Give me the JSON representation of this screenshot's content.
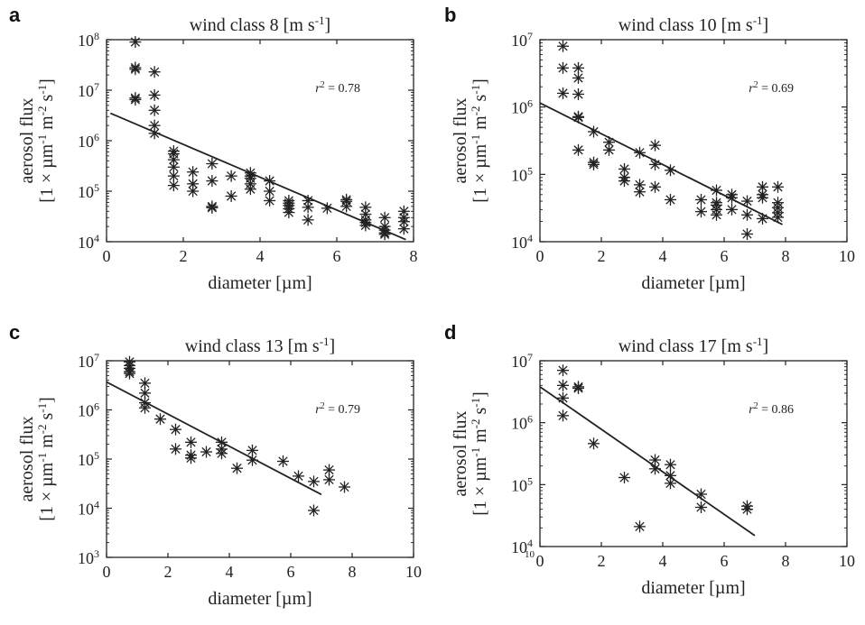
{
  "figure": {
    "colors": {
      "ink": "#222222"
    }
  },
  "chart_data": [
    {
      "type": "scatter",
      "panel": "a",
      "title": "wind class 8 [m s",
      "title_sup": "-1",
      "title_end": "]",
      "xlabel": "diameter [µm]",
      "ylabel_line1": "aerosol flux",
      "ylabel_line2_a": "[1 × µm",
      "ylabel_line2_b": " m",
      "ylabel_line2_c": " s",
      "ylabel_line2_d": "]",
      "ylabel_sup1": "-1",
      "ylabel_sup2": "-2",
      "ylabel_sup3": "-1",
      "r2_label": "r",
      "r2_value": " = 0.78",
      "xlim": [
        0,
        8
      ],
      "xticks": [
        "0",
        "2",
        "4",
        "6",
        "8"
      ],
      "y_scale": "log",
      "ylim_exp": [
        4,
        8
      ],
      "yticks_exp": [
        "4",
        "5",
        "6",
        "7",
        "8"
      ],
      "ytick_base": "10",
      "fit_line": [
        [
          0.1,
          3500000
        ],
        [
          7.8,
          11000
        ]
      ],
      "points": [
        [
          0.75,
          90000000
        ],
        [
          0.75,
          28000000
        ],
        [
          0.75,
          26000000
        ],
        [
          0.75,
          7000000
        ],
        [
          0.75,
          6500000
        ],
        [
          1.25,
          23000000
        ],
        [
          1.25,
          8000000
        ],
        [
          1.25,
          4000000
        ],
        [
          1.25,
          2000000
        ],
        [
          1.25,
          1400000
        ],
        [
          1.75,
          620000
        ],
        [
          1.75,
          550000
        ],
        [
          1.75,
          420000
        ],
        [
          1.75,
          300000
        ],
        [
          1.75,
          200000
        ],
        [
          1.75,
          130000
        ],
        [
          2.25,
          240000
        ],
        [
          2.25,
          140000
        ],
        [
          2.25,
          100000
        ],
        [
          2.75,
          350000
        ],
        [
          2.75,
          160000
        ],
        [
          2.75,
          50000
        ],
        [
          2.75,
          47000
        ],
        [
          3.25,
          200000
        ],
        [
          3.25,
          80000
        ],
        [
          3.75,
          230000
        ],
        [
          3.75,
          200000
        ],
        [
          3.75,
          180000
        ],
        [
          3.75,
          140000
        ],
        [
          3.75,
          110000
        ],
        [
          4.25,
          160000
        ],
        [
          4.25,
          100000
        ],
        [
          4.25,
          65000
        ],
        [
          4.75,
          65000
        ],
        [
          4.75,
          58000
        ],
        [
          4.75,
          52000
        ],
        [
          4.75,
          45000
        ],
        [
          4.75,
          38000
        ],
        [
          5.25,
          65000
        ],
        [
          5.25,
          48000
        ],
        [
          5.25,
          27000
        ],
        [
          5.75,
          46000
        ],
        [
          6.25,
          68000
        ],
        [
          6.25,
          63000
        ],
        [
          6.25,
          50000
        ],
        [
          6.75,
          48000
        ],
        [
          6.75,
          35000
        ],
        [
          6.75,
          27000
        ],
        [
          6.75,
          24000
        ],
        [
          6.75,
          21000
        ],
        [
          7.25,
          30000
        ],
        [
          7.25,
          20000
        ],
        [
          7.25,
          17000
        ],
        [
          7.25,
          15000
        ],
        [
          7.25,
          14000
        ],
        [
          7.75,
          40000
        ],
        [
          7.75,
          30000
        ],
        [
          7.75,
          25000
        ],
        [
          7.75,
          18000
        ]
      ]
    },
    {
      "type": "scatter",
      "panel": "b",
      "title": "wind class 10 [m s",
      "title_sup": "-1",
      "title_end": "]",
      "xlabel": "diameter [µm]",
      "ylabel_line1": "aerosol flux",
      "ylabel_line2_a": "[1 × µm",
      "ylabel_line2_b": " m",
      "ylabel_line2_c": " s",
      "ylabel_line2_d": "]",
      "ylabel_sup1": "-1",
      "ylabel_sup2": "-2",
      "ylabel_sup3": "-1",
      "r2_label": "r",
      "r2_value": " = 0.69",
      "xlim": [
        0,
        10
      ],
      "xticks": [
        "0",
        "2",
        "4",
        "6",
        "8",
        "10"
      ],
      "y_scale": "log",
      "ylim_exp": [
        4,
        7
      ],
      "yticks_exp": [
        "4",
        "5",
        "6",
        "7"
      ],
      "ytick_base": "10",
      "fit_line": [
        [
          0.0,
          1150000
        ],
        [
          7.9,
          18000
        ]
      ],
      "points": [
        [
          0.75,
          8000000
        ],
        [
          0.75,
          3800000
        ],
        [
          0.75,
          1600000
        ],
        [
          1.25,
          3800000
        ],
        [
          1.25,
          2700000
        ],
        [
          1.25,
          1550000
        ],
        [
          1.25,
          720000
        ],
        [
          1.25,
          700000
        ],
        [
          1.25,
          230000
        ],
        [
          1.75,
          430000
        ],
        [
          1.75,
          150000
        ],
        [
          1.75,
          140000
        ],
        [
          2.25,
          300000
        ],
        [
          2.25,
          230000
        ],
        [
          2.75,
          120000
        ],
        [
          2.75,
          90000
        ],
        [
          2.75,
          80000
        ],
        [
          3.25,
          210000
        ],
        [
          3.25,
          70000
        ],
        [
          3.25,
          55000
        ],
        [
          3.75,
          270000
        ],
        [
          3.75,
          140000
        ],
        [
          3.75,
          65000
        ],
        [
          4.25,
          115000
        ],
        [
          4.25,
          42000
        ],
        [
          5.25,
          42000
        ],
        [
          5.25,
          28000
        ],
        [
          5.75,
          58000
        ],
        [
          5.75,
          38000
        ],
        [
          5.75,
          35000
        ],
        [
          5.75,
          30000
        ],
        [
          5.75,
          25000
        ],
        [
          6.25,
          50000
        ],
        [
          6.25,
          45000
        ],
        [
          6.25,
          30000
        ],
        [
          6.75,
          40000
        ],
        [
          6.75,
          25000
        ],
        [
          6.75,
          13000
        ],
        [
          7.25,
          65000
        ],
        [
          7.25,
          50000
        ],
        [
          7.25,
          45000
        ],
        [
          7.25,
          22000
        ],
        [
          7.75,
          65000
        ],
        [
          7.75,
          38000
        ],
        [
          7.75,
          32000
        ],
        [
          7.75,
          27000
        ],
        [
          7.75,
          23000
        ]
      ]
    },
    {
      "type": "scatter",
      "panel": "c",
      "title": "wind class 13 [m s",
      "title_sup": "-1",
      "title_end": "]",
      "xlabel": "diameter [µm]",
      "ylabel_line1": "aerosol flux",
      "ylabel_line2_a": "[1 × µm",
      "ylabel_line2_b": " m",
      "ylabel_line2_c": " s",
      "ylabel_line2_d": "]",
      "ylabel_sup1": "-1",
      "ylabel_sup2": "-2",
      "ylabel_sup3": "-1",
      "r2_label": "r",
      "r2_value": " = 0.79",
      "xlim": [
        0,
        10
      ],
      "xticks": [
        "0",
        "2",
        "4",
        "6",
        "8",
        "10"
      ],
      "y_scale": "log",
      "ylim_exp": [
        3,
        7
      ],
      "yticks_exp": [
        "3",
        "4",
        "5",
        "6",
        "7"
      ],
      "ytick_base": "10",
      "fit_line": [
        [
          0.0,
          3700000
        ],
        [
          7.0,
          19000
        ]
      ],
      "points": [
        [
          0.75,
          9500000
        ],
        [
          0.75,
          8000000
        ],
        [
          0.75,
          7000000
        ],
        [
          0.75,
          6000000
        ],
        [
          0.75,
          5500000
        ],
        [
          1.25,
          3500000
        ],
        [
          1.25,
          2200000
        ],
        [
          1.25,
          1400000
        ],
        [
          1.25,
          1100000
        ],
        [
          1.75,
          650000
        ],
        [
          2.25,
          400000
        ],
        [
          2.25,
          160000
        ],
        [
          2.75,
          220000
        ],
        [
          2.75,
          120000
        ],
        [
          2.75,
          105000
        ],
        [
          3.25,
          140000
        ],
        [
          3.75,
          220000
        ],
        [
          3.75,
          160000
        ],
        [
          3.75,
          130000
        ],
        [
          4.25,
          65000
        ],
        [
          4.75,
          150000
        ],
        [
          4.75,
          95000
        ],
        [
          5.75,
          90000
        ],
        [
          6.25,
          45000
        ],
        [
          6.75,
          35000
        ],
        [
          6.75,
          9000
        ],
        [
          7.25,
          60000
        ],
        [
          7.25,
          38000
        ],
        [
          7.75,
          27000
        ]
      ]
    },
    {
      "type": "scatter",
      "panel": "d",
      "title": "wind class 17 [m s",
      "title_sup": "-1",
      "title_end": "]",
      "xlabel": "diameter [µm]",
      "ylabel_line1": "aerosol flux",
      "ylabel_line2_a": "[1 × µm",
      "ylabel_line2_b": " m",
      "ylabel_line2_c": " s",
      "ylabel_line2_d": "]",
      "ylabel_sup1": "-1",
      "ylabel_sup2": "-2",
      "ylabel_sup3": "-1",
      "r2_label": "r",
      "r2_value": " = 0.86",
      "xlim": [
        0,
        10
      ],
      "xticks": [
        "0",
        "2",
        "4",
        "6",
        "8",
        "10"
      ],
      "y_scale": "log",
      "ylim_exp": [
        4,
        7
      ],
      "yticks_exp": [
        "4",
        "5",
        "6",
        "7"
      ],
      "ytick_base": "10",
      "extra_tick": "10",
      "fit_line": [
        [
          0.0,
          3800000
        ],
        [
          7.0,
          15000
        ]
      ],
      "points": [
        [
          0.75,
          7000000
        ],
        [
          0.75,
          4000000
        ],
        [
          0.75,
          2500000
        ],
        [
          0.75,
          1300000
        ],
        [
          1.25,
          3800000
        ],
        [
          1.25,
          3600000
        ],
        [
          1.75,
          460000
        ],
        [
          2.75,
          130000
        ],
        [
          3.25,
          21000
        ],
        [
          3.75,
          250000
        ],
        [
          3.75,
          180000
        ],
        [
          4.25,
          210000
        ],
        [
          4.25,
          140000
        ],
        [
          4.25,
          105000
        ],
        [
          5.25,
          70000
        ],
        [
          5.25,
          43000
        ],
        [
          6.75,
          45000
        ],
        [
          6.75,
          40000
        ]
      ]
    }
  ]
}
